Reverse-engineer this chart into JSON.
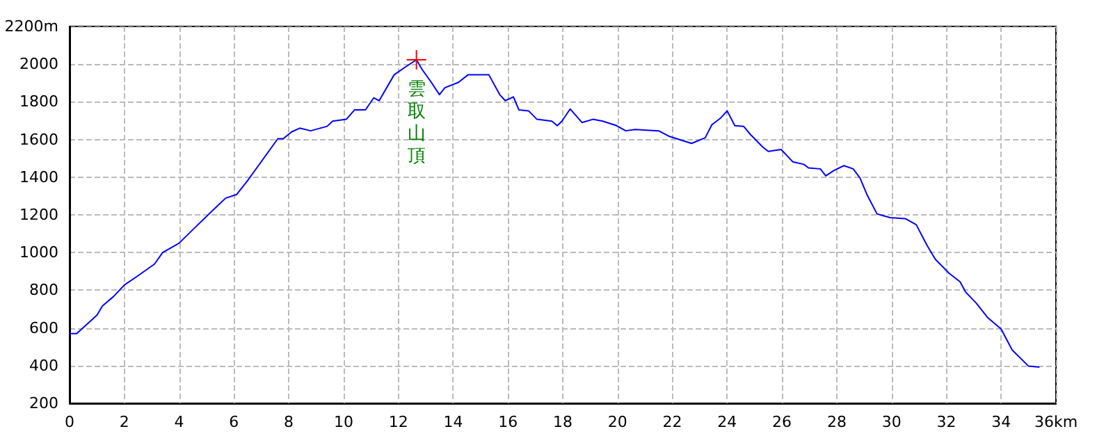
{
  "chart_data": {
    "type": "line",
    "x": [
      0,
      0.26,
      1.0,
      1.2,
      1.6,
      2.0,
      2.5,
      3.1,
      3.4,
      4.0,
      4.6,
      5.3,
      5.7,
      6.1,
      6.5,
      7.6,
      7.8,
      8.1,
      8.4,
      8.8,
      9.4,
      9.6,
      10.1,
      10.4,
      10.8,
      11.1,
      11.3,
      11.85,
      12.27,
      12.66,
      12.86,
      13.2,
      13.5,
      13.7,
      14.2,
      14.55,
      15.3,
      15.7,
      15.9,
      16.2,
      16.4,
      16.75,
      17.06,
      17.6,
      17.8,
      17.97,
      18.27,
      18.7,
      19.1,
      19.46,
      19.97,
      20.3,
      20.64,
      21.5,
      21.9,
      22.7,
      23.2,
      23.44,
      23.77,
      24.0,
      24.28,
      24.6,
      24.84,
      25.3,
      25.5,
      25.97,
      26.4,
      26.8,
      26.97,
      27.4,
      27.6,
      27.9,
      28.26,
      28.6,
      28.85,
      29.1,
      29.47,
      29.95,
      30.5,
      30.9,
      31.3,
      31.6,
      32.1,
      32.5,
      32.7,
      33.1,
      33.5,
      34.0,
      34.4,
      35.0,
      35.4
    ],
    "series": [
      {
        "color": "#0000ff",
        "values": [
          570,
          570,
          668,
          717,
          766,
          828,
          877,
          939,
          1000,
          1050,
          1136,
          1234,
          1289,
          1308,
          1382,
          1604,
          1604,
          1640,
          1660,
          1646,
          1670,
          1697,
          1707,
          1757,
          1757,
          1821,
          1806,
          1944,
          1986,
          2023,
          1973,
          1904,
          1838,
          1875,
          1904,
          1944,
          1944,
          1838,
          1806,
          1826,
          1757,
          1752,
          1707,
          1697,
          1673,
          1697,
          1762,
          1690,
          1707,
          1697,
          1673,
          1646,
          1653,
          1646,
          1616,
          1579,
          1609,
          1678,
          1715,
          1752,
          1673,
          1670,
          1628,
          1560,
          1537,
          1547,
          1481,
          1468,
          1449,
          1444,
          1407,
          1436,
          1461,
          1444,
          1395,
          1308,
          1205,
          1185,
          1180,
          1148,
          1037,
          964,
          890,
          845,
          791,
          730,
          656,
          594,
          483,
          397,
          392
        ]
      }
    ],
    "xlim": [
      0,
      36
    ],
    "xticks": [
      0,
      2,
      4,
      6,
      8,
      10,
      12,
      14,
      16,
      18,
      20,
      22,
      24,
      26,
      28,
      30,
      32,
      34,
      {
        "value": 36,
        "label": "36km"
      }
    ],
    "ylim": [
      200,
      2200
    ],
    "yticks": [
      200,
      400,
      600,
      800,
      1000,
      1200,
      1400,
      1600,
      1800,
      2000,
      {
        "value": 2200,
        "label": "2200m"
      }
    ],
    "grid": true,
    "marker": "none",
    "line_style": "solid",
    "annotations": [
      {
        "text": "雲取山頂",
        "x": 12.66,
        "y": 2023
      }
    ]
  }
}
